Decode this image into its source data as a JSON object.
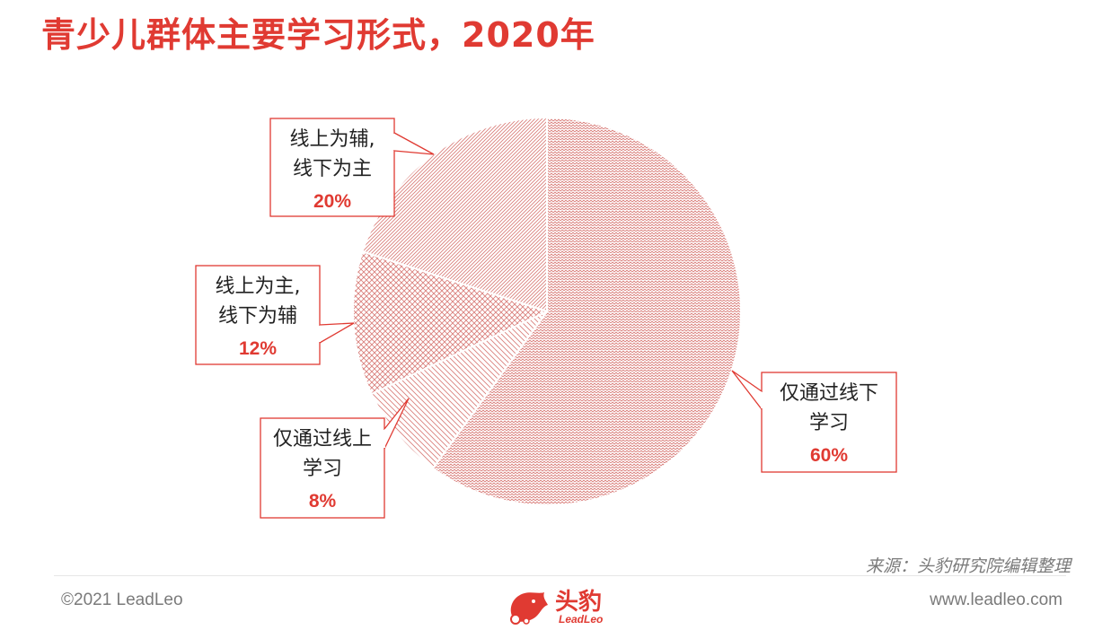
{
  "header": {
    "title": "青少儿群体主要学习形式，2020年"
  },
  "chart_data": {
    "type": "pie",
    "title": "青少儿群体主要学习形式，2020年",
    "slices": [
      {
        "label_lines": [
          "仅通过线下",
          "学习"
        ],
        "value": 60,
        "value_label": "60%"
      },
      {
        "label_lines": [
          "仅通过线上",
          "学习"
        ],
        "value": 8,
        "value_label": "8%"
      },
      {
        "label_lines": [
          "线上为主,",
          "线下为辅"
        ],
        "value": 12,
        "value_label": "12%"
      },
      {
        "label_lines": [
          "线上为辅,",
          "线下为主"
        ],
        "value": 20,
        "value_label": "20%"
      }
    ],
    "colors": {
      "accent": "#e03a32",
      "slice_pattern": "#d9807c"
    }
  },
  "footer": {
    "source": "来源：头豹研究院编辑整理",
    "copyright": "©2021 LeadLeo",
    "website": "www.leadleo.com",
    "brand_cn": "头豹",
    "brand_en": "LeadLeo"
  }
}
